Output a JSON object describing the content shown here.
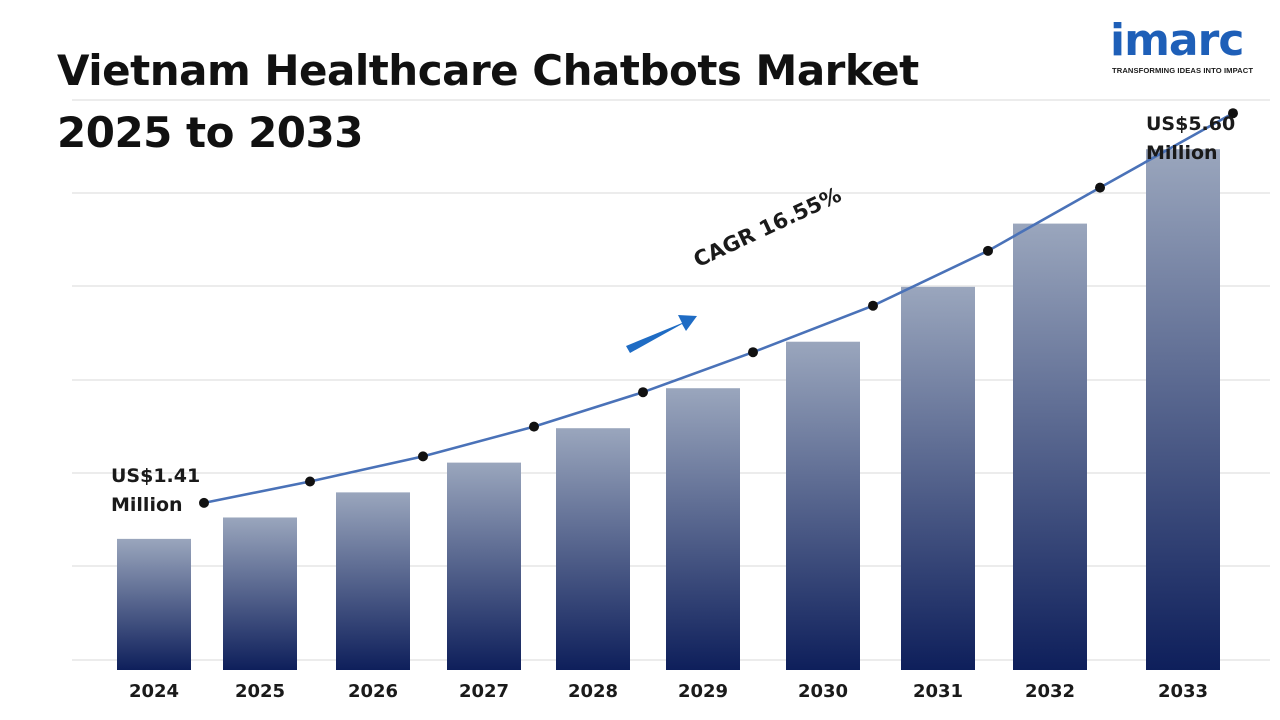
{
  "header": {
    "title_line1": "Vietnam Healthcare Chatbots Market",
    "title_line2": "2025 to 2033"
  },
  "logo": {
    "wordmark": "imarc",
    "tagline": "TRANSFORMING IDEAS INTO IMPACT",
    "color": "#1e5fb8"
  },
  "colors": {
    "bar_top": "#9aa6bd",
    "bar_bottom": "#0e1f5b",
    "line": "#4a72b8",
    "marker": "#111111",
    "grid": "#d9d9d9",
    "arrow": "#1f6cc4"
  },
  "annotations": {
    "start_line1": "US$1.41",
    "start_line2": "Million",
    "end_line1": "US$5.60",
    "end_line2": "Million",
    "cagr": "CAGR 16.55%"
  },
  "chart_data": {
    "type": "bar",
    "categories": [
      "2024",
      "2025",
      "2026",
      "2027",
      "2028",
      "2029",
      "2030",
      "2031",
      "2032",
      "2033"
    ],
    "values": [
      1.41,
      1.64,
      1.91,
      2.23,
      2.6,
      3.03,
      3.53,
      4.12,
      4.8,
      5.6
    ],
    "overlay": "line with markers following the bars",
    "ylim": [
      0,
      6
    ],
    "grid": true,
    "xlabel": "",
    "ylabel": ""
  }
}
